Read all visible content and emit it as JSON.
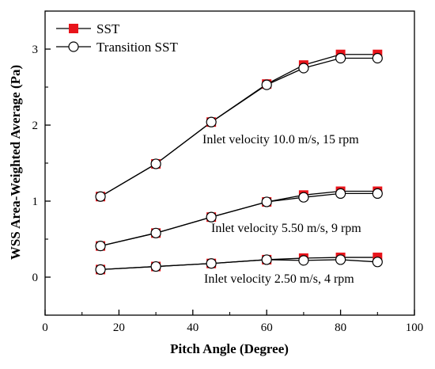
{
  "chart_data": {
    "type": "line",
    "xlabel": "Pitch Angle (Degree)",
    "ylabel": "WSS Area-Weighted Average (Pa)",
    "xlim": [
      0,
      100
    ],
    "ylim": [
      -0.5,
      3.5
    ],
    "xticks": [
      0,
      20,
      40,
      60,
      80,
      100
    ],
    "yticks": [
      0,
      1,
      2,
      3
    ],
    "grid": false,
    "legend": {
      "position": "top-left",
      "entries": [
        {
          "label": "SST",
          "marker": "filled-square",
          "color": "#e8141b"
        },
        {
          "label": "Transition SST",
          "marker": "open-circle",
          "color": "#000000"
        }
      ]
    },
    "x": [
      15,
      30,
      45,
      60,
      70,
      80,
      90
    ],
    "groups": [
      {
        "annotation": "Inlet velocity 10.0 m/s, 15 rpm",
        "series": [
          {
            "name": "SST",
            "values": [
              1.06,
              1.49,
              2.04,
              2.54,
              2.79,
              2.93,
              2.93
            ]
          },
          {
            "name": "Transition SST",
            "values": [
              1.06,
              1.49,
              2.04,
              2.53,
              2.75,
              2.88,
              2.88
            ]
          }
        ]
      },
      {
        "annotation": "Inlet velocity 5.50 m/s, 9 rpm",
        "series": [
          {
            "name": "SST",
            "values": [
              0.41,
              0.58,
              0.79,
              0.99,
              1.08,
              1.13,
              1.13
            ]
          },
          {
            "name": "Transition SST",
            "values": [
              0.41,
              0.58,
              0.79,
              0.99,
              1.05,
              1.1,
              1.1
            ]
          }
        ]
      },
      {
        "annotation": "Inlet velocity 2.50 m/s, 4 rpm",
        "series": [
          {
            "name": "SST",
            "values": [
              0.1,
              0.14,
              0.18,
              0.23,
              0.25,
              0.26,
              0.26
            ]
          },
          {
            "name": "Transition SST",
            "values": [
              0.1,
              0.14,
              0.18,
              0.23,
              0.22,
              0.23,
              0.2
            ]
          }
        ]
      }
    ],
    "colors": {
      "sst": "#e8141b",
      "transition_sst": "#000000",
      "axis": "#000000"
    }
  }
}
